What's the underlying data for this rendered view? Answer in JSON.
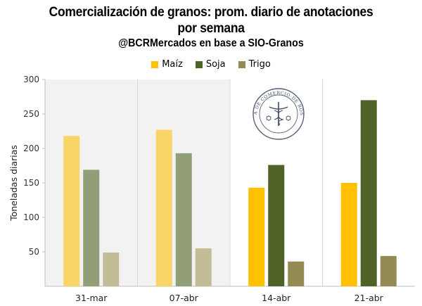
{
  "chart_data": {
    "type": "bar",
    "title": "Comercialización de granos: prom. diario de anotaciones",
    "title_line2": "por semana",
    "subtitle": "@BCRMercados en base a SIO-Granos",
    "ylabel": "Toneladas diarias",
    "xlabel": "",
    "ylim": [
      0,
      300
    ],
    "yticks": [
      50,
      100,
      150,
      200,
      250,
      300
    ],
    "grid": false,
    "legend_position": "top-center",
    "categories": [
      "31-mar",
      "07-abr",
      "14-abr",
      "21-abr"
    ],
    "series": [
      {
        "name": "Maíz",
        "color": "#FFC000",
        "values": [
          218,
          227,
          143,
          150
        ]
      },
      {
        "name": "Soja",
        "color": "#4F6228",
        "values": [
          169,
          193,
          176,
          270
        ]
      },
      {
        "name": "Trigo",
        "color": "#948A54",
        "values": [
          49,
          55,
          36,
          44
        ]
      }
    ],
    "faded_categories": [
      0,
      1
    ],
    "faded_colors": [
      "#F9D466",
      "#929E78",
      "#C2BC97"
    ],
    "shaded_categories": [
      0,
      1
    ]
  },
  "seal": {
    "text": "BOLSA DE COMERCIO DE ROSARIO",
    "icon": "bcr-seal-icon"
  }
}
